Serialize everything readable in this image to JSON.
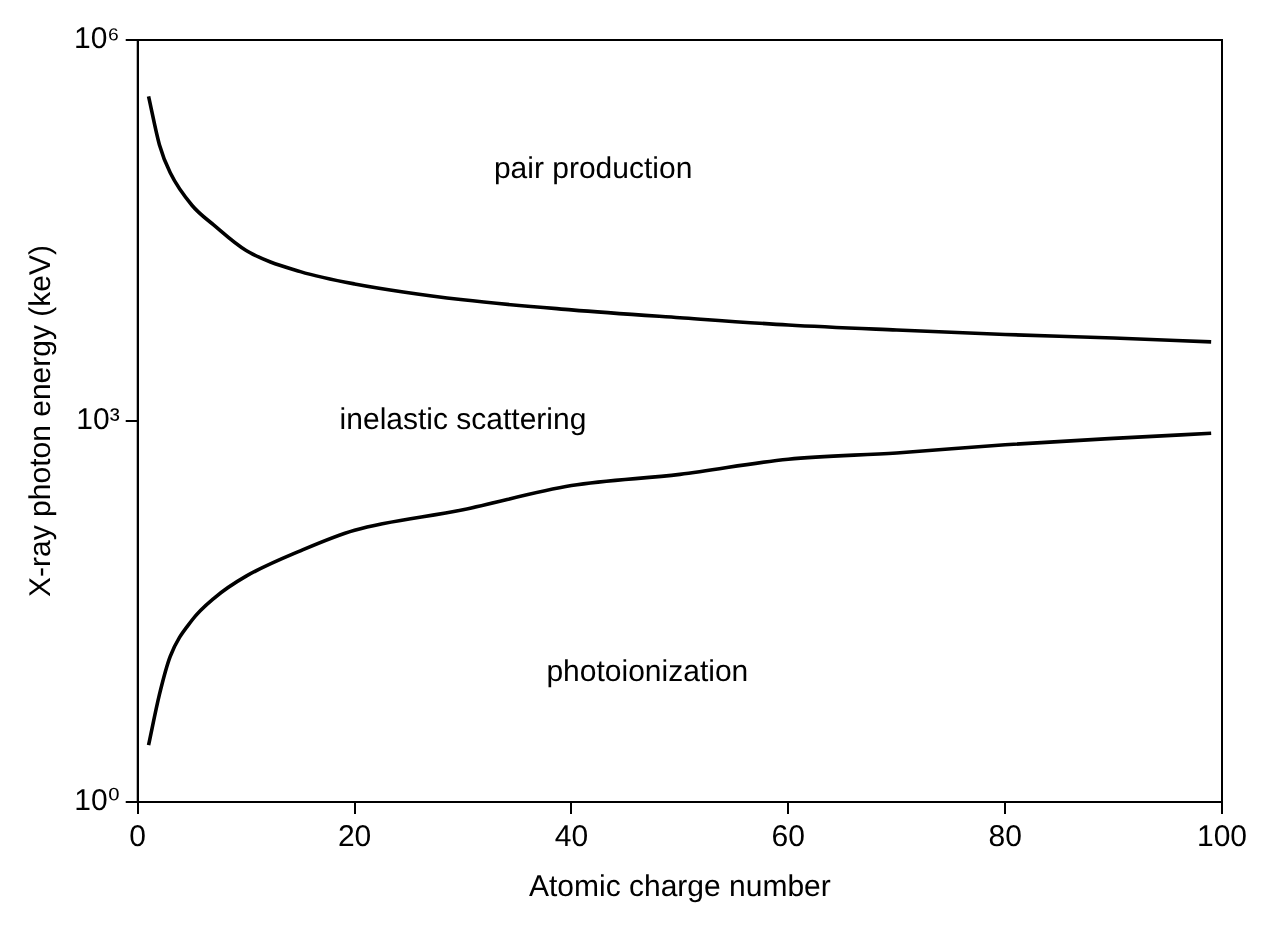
{
  "chart_data": {
    "type": "line",
    "xlabel": "Atomic charge number",
    "ylabel": "X-ray photon energy (keV)",
    "log": "y",
    "grid": false,
    "legend": false,
    "marker": "none",
    "line_style": "solid",
    "xlim": [
      0,
      100
    ],
    "xticks": [
      0,
      20,
      40,
      60,
      80,
      100
    ],
    "ylim": [
      1,
      1000000
    ],
    "yticks": [
      {
        "value": 1,
        "label": "10⁰"
      },
      {
        "value": 1000,
        "label": "10³"
      },
      {
        "value": 1000000,
        "label": "10⁶"
      }
    ],
    "x": [
      1,
      2,
      3,
      5,
      7,
      10,
      15,
      20,
      30,
      40,
      50,
      60,
      70,
      80,
      90,
      99
    ],
    "series": [
      {
        "color": "#000000",
        "values": [
          360000,
          150000,
          90000,
          50000,
          35000,
          22000,
          15000,
          12000,
          9000,
          7500,
          6500,
          5700,
          5200,
          4800,
          4500,
          4200
        ]
      },
      {
        "color": "#000000",
        "values": [
          2.8,
          7,
          14,
          27,
          40,
          60,
          95,
          138,
          200,
          310,
          380,
          500,
          560,
          650,
          730,
          800
        ]
      }
    ],
    "annotations": [
      "pair production",
      "inelastic scattering",
      "photoionization"
    ]
  }
}
